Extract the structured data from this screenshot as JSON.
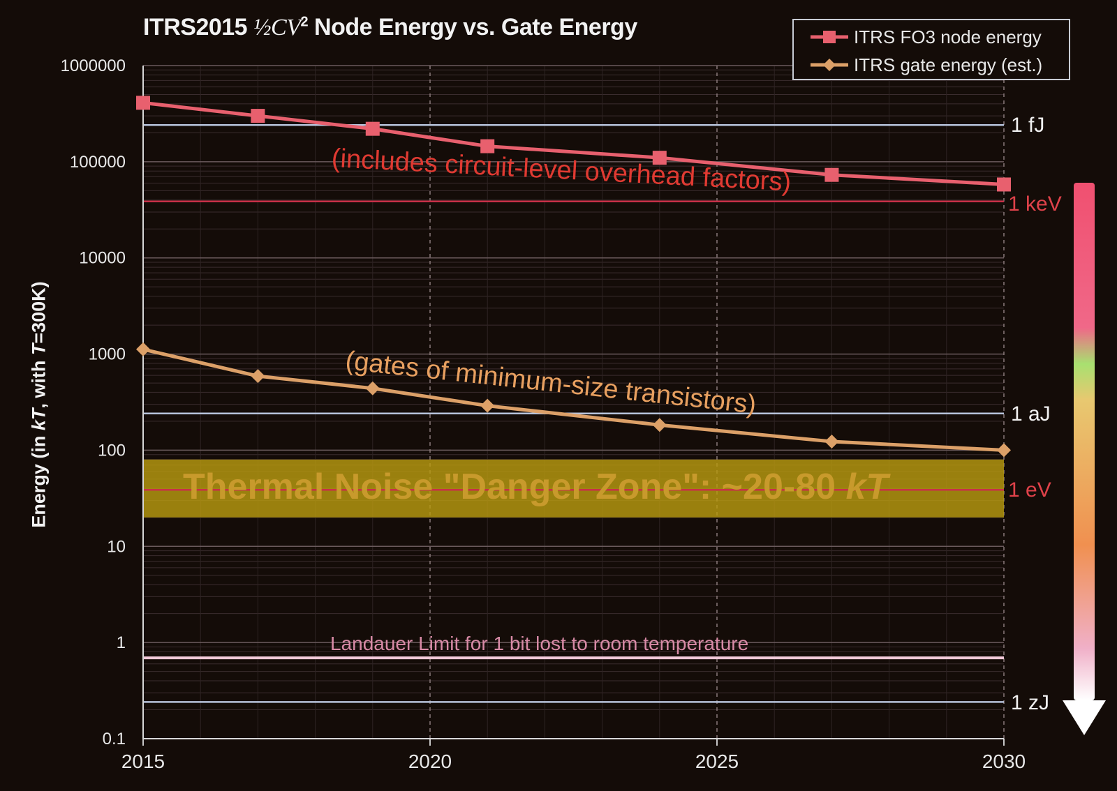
{
  "title_prefix": "ITRS2015 ",
  "title_formula_a": "½",
  "title_formula_b": "CV",
  "title_formula_sup": "2",
  "title_suffix": " Node Energy vs. Gate Energy",
  "y_axis_label_parts": [
    "Energy (in ",
    "kT",
    ", with ",
    "T",
    "=300K)"
  ],
  "colors": {
    "node_series": "#e8606e",
    "gate_series": "#dca068",
    "danger_band": "#b89a10",
    "red_annotation": "#e03a32",
    "landauer_line": "#f0c8d8",
    "reference_lines": "#b8c4dc"
  },
  "legend": [
    {
      "label": "ITRS FO3 node energy",
      "marker": "square"
    },
    {
      "label": "ITRS gate energy (est.)",
      "marker": "diamond"
    }
  ],
  "annotations": {
    "node_note": "(includes circuit-level overhead factors)",
    "gate_note": "(gates of minimum-size transistors)",
    "danger_zone_text": "Thermal Noise \"Danger Zone\": ~20-80 ",
    "danger_zone_kt": "kT",
    "landauer_text": "Landauer Limit for 1 bit lost to room temperature"
  },
  "reference_units": [
    {
      "label": "1 fJ",
      "y": 241000,
      "color": "white"
    },
    {
      "label": "1 keV",
      "y": 38700,
      "color": "red"
    },
    {
      "label": "1 aJ",
      "y": 241,
      "color": "white"
    },
    {
      "label": "1 eV",
      "y": 38.7,
      "color": "red"
    },
    {
      "label": "1 zJ",
      "y": 0.241,
      "color": "white"
    }
  ],
  "chart_data": {
    "type": "line",
    "title": "ITRS2015 ½CV² Node Energy vs. Gate Energy",
    "xlabel": "",
    "ylabel": "Energy (in kT, with T=300K)",
    "y_scale": "log",
    "xlim": [
      2015,
      2030
    ],
    "ylim": [
      0.1,
      1000000
    ],
    "x_ticks": [
      2015,
      2020,
      2025,
      2030
    ],
    "y_ticks": [
      0.1,
      1,
      10,
      100,
      1000,
      10000,
      100000,
      1000000
    ],
    "y_tick_labels": [
      "0.1",
      "1",
      "10",
      "100",
      "1000",
      "10000",
      "100000",
      "1000000"
    ],
    "grid": true,
    "legend_position": "top-right",
    "series": [
      {
        "name": "ITRS FO3 node energy",
        "marker": "square",
        "x": [
          2015,
          2017,
          2019,
          2021,
          2024,
          2027,
          2030
        ],
        "y": [
          410000,
          300000,
          220000,
          145000,
          110000,
          73000,
          58000
        ]
      },
      {
        "name": "ITRS gate energy (est.)",
        "marker": "diamond",
        "x": [
          2015,
          2017,
          2019,
          2021,
          2024,
          2027,
          2030
        ],
        "y": [
          1120,
          590,
          440,
          290,
          183,
          123,
          100
        ]
      }
    ],
    "bands": [
      {
        "label": "Thermal Noise \"Danger Zone\": ~20-80 kT",
        "y_range": [
          20,
          80
        ]
      }
    ],
    "hlines": [
      {
        "label": "Landauer Limit for 1 bit lost to room temperature",
        "y": 0.693
      }
    ]
  }
}
